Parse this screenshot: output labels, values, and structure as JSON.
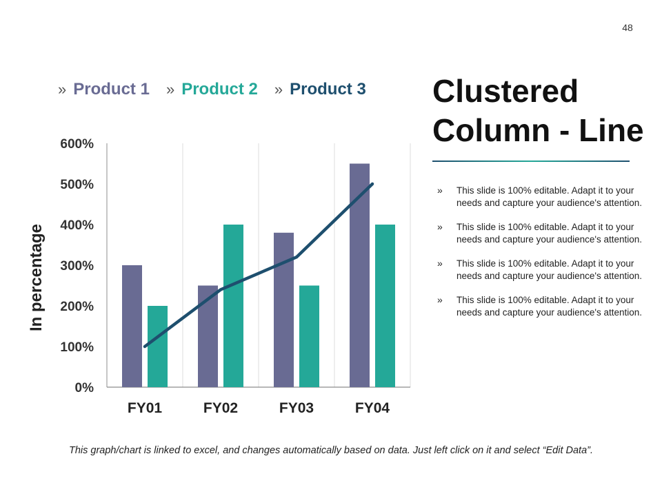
{
  "page_number": "48",
  "title_lines": [
    "Clustered",
    "Column - Line"
  ],
  "legend_marker": "»",
  "bullet_marker": "»",
  "colors": {
    "product1": "#696b93",
    "product2": "#24a898",
    "product3": "#1e4f6e",
    "rule_start": "#1e4f6e",
    "rule_end": "#24a898",
    "grid": "#dcdcdc",
    "axis": "#8c8c8c"
  },
  "bullets": [
    "This slide is 100% editable. Adapt it to your needs and capture your audience's attention.",
    "This slide is 100% editable. Adapt it to your needs and capture your audience's attention.",
    "This slide is 100% editable. Adapt it to your needs and capture your audience's attention.",
    "This slide is 100% editable. Adapt it to your needs and capture your audience's attention."
  ],
  "footer_note": "This graph/chart is linked to excel, and changes automatically based on data. Just left click on it and select “Edit Data”.",
  "chart_data": {
    "type": "bar",
    "categories": [
      "FY01",
      "FY02",
      "FY03",
      "FY04"
    ],
    "series": [
      {
        "name": "Product 1",
        "kind": "bar",
        "values": [
          300,
          250,
          380,
          550
        ]
      },
      {
        "name": "Product 2",
        "kind": "bar",
        "values": [
          200,
          400,
          250,
          400
        ]
      },
      {
        "name": "Product 3",
        "kind": "line",
        "values": [
          100,
          240,
          320,
          500
        ]
      }
    ],
    "ylabel": "In percentage",
    "ylim": [
      0,
      600
    ],
    "yticks": [
      0,
      100,
      200,
      300,
      400,
      500,
      600
    ],
    "ytick_labels": [
      "0%",
      "100%",
      "200%",
      "300%",
      "400%",
      "500%",
      "600%"
    ],
    "grid": "vertical",
    "legend": "top"
  }
}
